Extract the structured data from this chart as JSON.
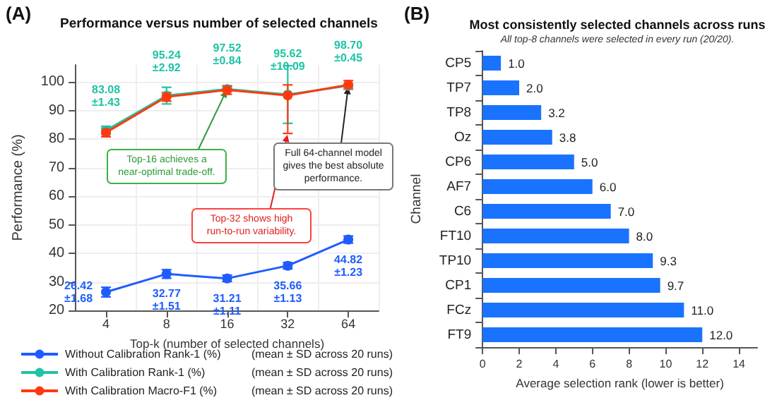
{
  "chart_data": [
    {
      "type": "line",
      "title": "Performance versus number of selected channels",
      "xlabel": "Top-k (number of selected channels)",
      "ylabel": "Performance (%)",
      "categories": [
        "4",
        "8",
        "16",
        "32",
        "64"
      ],
      "ylim": [
        20,
        106
      ],
      "yticks": [
        20,
        30,
        40,
        50,
        60,
        70,
        80,
        90,
        100
      ],
      "marker": "circle",
      "legend": "bottom",
      "grid": true,
      "series": [
        {
          "name": "Without Calibration Rank-1 (%)",
          "color": "#1f5cff",
          "values": [
            26.42,
            32.77,
            31.21,
            35.66,
            44.82
          ],
          "errors": [
            1.68,
            1.51,
            1.11,
            1.13,
            1.23
          ],
          "value_labels": [
            "26.42\n±1.68",
            "32.77\n±1.51",
            "31.21\n±1.11",
            "35.66\n±1.13",
            "44.82\n±1.23"
          ]
        },
        {
          "name": "With Calibration Rank-1 (%)",
          "color": "#1fc4a4",
          "values": [
            83.08,
            95.24,
            97.52,
            95.62,
            98.7
          ],
          "errors": [
            1.43,
            2.92,
            0.84,
            10.09,
            0.45
          ],
          "value_labels": [
            "83.08\n±1.43",
            "95.24\n±2.92",
            "97.52\n±0.84",
            "95.62\n±10.09",
            "98.70\n±0.45"
          ]
        },
        {
          "name": "With Calibration Macro-F1 (%)",
          "color": "#ff3a10",
          "values": [
            82.3,
            94.8,
            97.2,
            95.3,
            99.0
          ],
          "errors": [
            1.5,
            1.5,
            1.5,
            [
              82,
              99
            ],
            1.5
          ]
        }
      ],
      "annotations": [
        "(A)",
        {
          "text": "Top-16 achieves a\nnear-optimal trade-off.",
          "x": "16",
          "y": 97.52
        },
        {
          "text": "Top-32 shows high\nrun-to-run variability.",
          "x": "32",
          "y": 82
        },
        {
          "text": "Full 64-channel model\ngives the best absolute\nperformance.",
          "x": "64",
          "y": 98.7
        },
        "(mean ± SD across 20 runs)"
      ]
    },
    {
      "type": "bar",
      "orientation": "horizontal",
      "title": "Most consistently selected channels across runs",
      "subtitle": "All top-8 channels were selected in every run (20/20).",
      "xlabel": "Average selection rank (lower is better)",
      "ylabel": "Channel",
      "categories": [
        "CP5",
        "TP7",
        "TP8",
        "Oz",
        "CP6",
        "AF7",
        "C6",
        "FT10",
        "TP10",
        "CP1",
        "FCz",
        "FT9"
      ],
      "values": [
        1.0,
        2.0,
        3.2,
        3.8,
        5.0,
        6.0,
        7.0,
        8.0,
        9.3,
        9.7,
        11.0,
        12.0
      ],
      "value_labels": [
        "1.0",
        "2.0",
        "3.2",
        "3.8",
        "5.0",
        "6.0",
        "7.0",
        "8.0",
        "9.3",
        "9.7",
        "11.0",
        "12.0"
      ],
      "color": "#1a73ff",
      "xlim": [
        0,
        15
      ],
      "xticks": [
        0,
        2,
        4,
        6,
        8,
        10,
        12,
        14
      ],
      "annotations": [
        "(B)"
      ]
    }
  ]
}
